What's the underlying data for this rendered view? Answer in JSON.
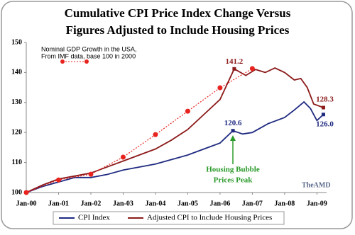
{
  "chart_data": {
    "type": "line",
    "title": [
      "Cumulative CPI Price Index Change Versus",
      "Figures Adjusted to Include Housing Prices"
    ],
    "xlim": [
      2000,
      2009.3
    ],
    "xticks": [
      {
        "value": 2000,
        "label": "Jan-00"
      },
      {
        "value": 2001,
        "label": "Jan-01"
      },
      {
        "value": 2002,
        "label": "Jan-02"
      },
      {
        "value": 2003,
        "label": "Jan-03"
      },
      {
        "value": 2004,
        "label": "Jan-04"
      },
      {
        "value": 2005,
        "label": "Jan-05"
      },
      {
        "value": 2006,
        "label": "Jan-06"
      },
      {
        "value": 2007,
        "label": "Jan-07"
      },
      {
        "value": 2008,
        "label": "Jan-08"
      },
      {
        "value": 2009,
        "label": "Jan-09"
      }
    ],
    "ylim": [
      100,
      150
    ],
    "yticks": [
      100,
      110,
      120,
      130,
      140,
      150
    ],
    "series": [
      {
        "name": "CPI Index",
        "color": "#1f2a80",
        "x": [
          2000,
          2000.5,
          2001,
          2001.5,
          2002,
          2002.5,
          2003,
          2003.5,
          2004,
          2004.5,
          2005,
          2005.5,
          2006,
          2006.4,
          2006.7,
          2007,
          2007.5,
          2008,
          2008.3,
          2008.6,
          2008.8,
          2009,
          2009.2
        ],
        "values": [
          100,
          102,
          103.5,
          105,
          105,
          106,
          107.5,
          108.5,
          109.5,
          111,
          112.5,
          114.5,
          116.5,
          120.6,
          119.5,
          120,
          123,
          125,
          127.5,
          130.2,
          128,
          124,
          126
        ],
        "value_labels": [
          null,
          null,
          null,
          null,
          null,
          null,
          null,
          null,
          null,
          null,
          null,
          null,
          null,
          "120.6",
          null,
          null,
          null,
          null,
          null,
          null,
          null,
          null,
          "126.0"
        ]
      },
      {
        "name": "Adjusted CPI to Include Housing Prices",
        "color": "#8b1a1a",
        "x": [
          2000,
          2000.5,
          2001,
          2001.5,
          2002,
          2002.5,
          2003,
          2003.5,
          2004,
          2004.5,
          2005,
          2005.5,
          2006,
          2006.44,
          2006.8,
          2007.1,
          2007.4,
          2007.7,
          2008,
          2008.3,
          2008.5,
          2008.7,
          2008.9,
          2009.2
        ],
        "values": [
          100,
          102.5,
          104.5,
          105.5,
          106.5,
          108.5,
          110.5,
          112.5,
          114.5,
          117.5,
          121,
          126,
          131,
          141.2,
          139,
          141,
          140,
          141.5,
          140,
          137.5,
          138,
          135,
          129.5,
          128.3
        ],
        "value_labels": [
          null,
          null,
          null,
          null,
          null,
          null,
          null,
          null,
          null,
          null,
          null,
          null,
          null,
          "141.2",
          null,
          null,
          null,
          null,
          null,
          null,
          null,
          null,
          null,
          "128.3"
        ]
      },
      {
        "name": "Nominal GDP Growth in the USA,",
        "color": "#e8231e",
        "dotted": true,
        "x": [
          2000,
          2001,
          2002,
          2003,
          2004,
          2005,
          2006,
          2007
        ],
        "values": [
          100,
          104.2,
          106.1,
          111.8,
          119.3,
          127.1,
          134.9,
          141.3
        ]
      }
    ],
    "inset_note": "From IMF data, base 100 in 2000",
    "annotation": [
      "Housing Bubble",
      "Prices Peak"
    ],
    "watermark": "TheAMD"
  }
}
